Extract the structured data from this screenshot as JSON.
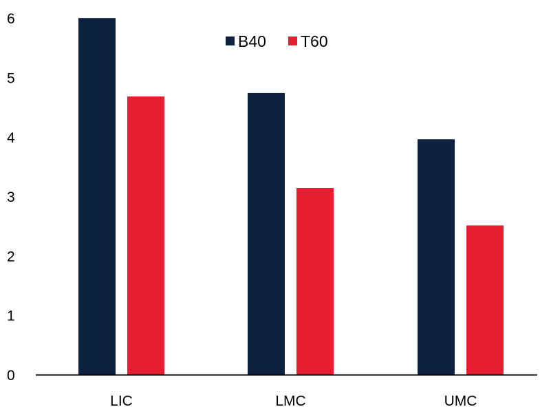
{
  "chart_data": {
    "type": "bar",
    "categories": [
      "LIC",
      "LMC",
      "UMC"
    ],
    "series": [
      {
        "name": "B40",
        "values": [
          6.0,
          4.74,
          3.96
        ],
        "color": "#0c2240"
      },
      {
        "name": "T60",
        "values": [
          4.68,
          3.14,
          2.51
        ],
        "color": "#e51f31"
      }
    ],
    "y_ticks": [
      "0",
      "1",
      "2",
      "3",
      "4",
      "5",
      "6"
    ],
    "ylim": [
      0,
      6
    ],
    "legend_position": "top-center",
    "grid": false,
    "title": "",
    "xlabel": "",
    "ylabel": ""
  }
}
